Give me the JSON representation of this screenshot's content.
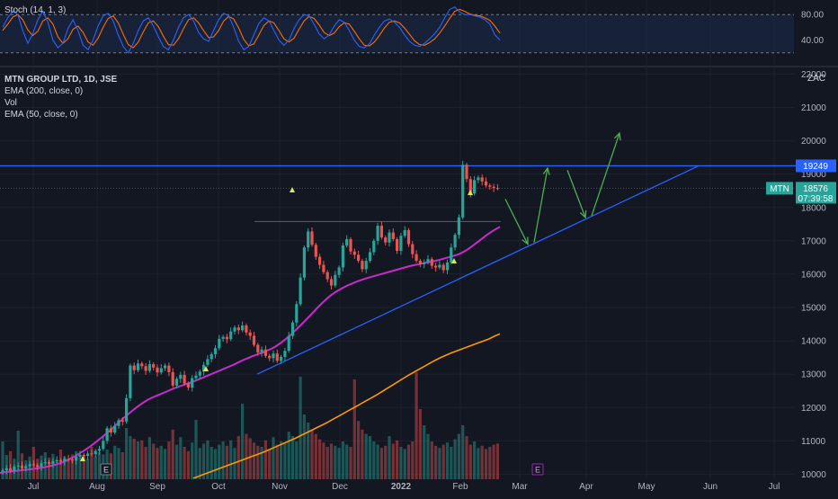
{
  "chart_data": [
    {
      "type": "line",
      "pane": "stochastic",
      "title": "Stoch (14, 1, 3)",
      "ylim": [
        0,
        100
      ],
      "y_ticks": [
        "80.00",
        "40.00"
      ],
      "band": [
        20,
        80
      ],
      "colors": {
        "k": "#2962ff",
        "d": "#ff6d00",
        "band_fill": "#1c2c4a"
      },
      "k_values": [
        60,
        75,
        85,
        80,
        55,
        35,
        50,
        72,
        85,
        68,
        40,
        28,
        35,
        58,
        72,
        55,
        32,
        25,
        40,
        62,
        78,
        82,
        70,
        48,
        30,
        20,
        35,
        55,
        70,
        75,
        62,
        45,
        30,
        25,
        40,
        60,
        75,
        80,
        70,
        52,
        42,
        38,
        55,
        72,
        82,
        78,
        60,
        38,
        25,
        30,
        48,
        66,
        75,
        70,
        55,
        40,
        32,
        40,
        58,
        72,
        80,
        78,
        65,
        50,
        42,
        48,
        62,
        72,
        68,
        55,
        40,
        30,
        28,
        34,
        48,
        60,
        70,
        73,
        68,
        60,
        48,
        38,
        32,
        30,
        35,
        42,
        50,
        60,
        75,
        88,
        92,
        84,
        80,
        80,
        78,
        76,
        72,
        65,
        48,
        40
      ],
      "d_values": [
        55,
        65,
        76,
        80,
        72,
        56,
        47,
        54,
        70,
        75,
        65,
        45,
        35,
        42,
        57,
        62,
        52,
        37,
        32,
        43,
        60,
        74,
        78,
        67,
        49,
        33,
        28,
        37,
        53,
        67,
        70,
        61,
        46,
        33,
        32,
        42,
        58,
        72,
        75,
        67,
        55,
        44,
        45,
        55,
        70,
        77,
        73,
        59,
        41,
        31,
        34,
        48,
        63,
        70,
        67,
        55,
        42,
        37,
        43,
        57,
        70,
        77,
        74,
        64,
        52,
        47,
        51,
        61,
        67,
        65,
        54,
        42,
        32,
        31,
        37,
        47,
        59,
        68,
        70,
        67,
        59,
        49,
        39,
        33,
        32,
        36,
        42,
        51,
        62,
        74,
        85,
        88,
        85,
        81,
        79,
        78,
        75,
        71,
        62,
        51
      ]
    },
    {
      "type": "candlestick",
      "pane": "price",
      "symbol": "MTN",
      "title": "MTN GROUP LTD, 1D, JSE",
      "currency": "ZAC",
      "ylim": [
        9850,
        22200
      ],
      "y_ticks": [
        10000,
        11000,
        12000,
        13000,
        14000,
        15000,
        16000,
        17000,
        18000,
        19000,
        20000,
        21000,
        22000
      ],
      "x_labels": [
        "Jul",
        "Aug",
        "Sep",
        "Oct",
        "Nov",
        "Dec",
        "2022",
        "Feb",
        "Mar",
        "Apr",
        "May",
        "Jun",
        "Jul"
      ],
      "horizontal_line": {
        "value": 19249,
        "label": "19249",
        "color": "#2962ff"
      },
      "last_price": {
        "value": 18576,
        "label": "18576",
        "countdown": "07:39:58",
        "color": "#26a69a"
      },
      "resistance_dotted": 17580,
      "colors": {
        "up": "#26a69a",
        "down": "#ef5350",
        "ema50": "#c72ccb",
        "ema200": "#ff9800",
        "trendline": "#2962ff",
        "arrows": "#4caf50"
      },
      "legend": [
        "EMA (200, close, 0)",
        "Vol",
        "EMA (50, close, 0)"
      ],
      "events": [
        "E",
        "E"
      ],
      "close": [
        10120,
        10180,
        10100,
        10230,
        10260,
        10180,
        10240,
        10300,
        10270,
        10220,
        10330,
        10360,
        10310,
        10390,
        10420,
        10380,
        10460,
        10440,
        10410,
        10520,
        10580,
        10550,
        10620,
        10600,
        10700,
        10760,
        11000,
        11380,
        11250,
        11450,
        11620,
        11580,
        12280,
        13260,
        13120,
        13320,
        13240,
        13100,
        13300,
        13200,
        13050,
        13180,
        13260,
        13060,
        12660,
        12860,
        12980,
        12720,
        12600,
        12880,
        12960,
        13080,
        13280,
        13450,
        13600,
        13780,
        14060,
        14120,
        14050,
        14280,
        14400,
        14320,
        14460,
        14250,
        14150,
        13880,
        13650,
        13740,
        13550,
        13480,
        13620,
        13400,
        13520,
        13700,
        14150,
        14550,
        15100,
        15900,
        16800,
        17280,
        16880,
        16520,
        16280,
        16060,
        15850,
        15660,
        15980,
        16200,
        16860,
        17050,
        16680,
        16580,
        16400,
        16150,
        16400,
        16660,
        17000,
        17450,
        17100,
        16950,
        17250,
        17050,
        16700,
        17150,
        17320,
        16900,
        16600,
        16400,
        16300,
        16350,
        16450,
        16250,
        16200,
        16280,
        16120,
        16350,
        16800,
        17180,
        17700,
        19280,
        18850,
        18420,
        18820,
        18900,
        18780,
        18660,
        18620,
        18580,
        18576
      ],
      "ema50": [
        10040,
        10060,
        10080,
        10095,
        10110,
        10125,
        10140,
        10160,
        10180,
        10200,
        10230,
        10260,
        10300,
        10350,
        10410,
        10480,
        10560,
        10650,
        10740,
        10840,
        10950,
        11060,
        11180,
        11300,
        11430,
        11560,
        11690,
        11810,
        11930,
        12040,
        12140,
        12230,
        12300,
        12360,
        12420,
        12480,
        12540,
        12600,
        12650,
        12700,
        12750,
        12800,
        12860,
        12920,
        12980,
        13040,
        13100,
        13160,
        13220,
        13280,
        13350,
        13420,
        13480,
        13540,
        13590,
        13640,
        13700,
        13760,
        13840,
        13940,
        14050,
        14170,
        14310,
        14450,
        14590,
        14740,
        14890,
        15040,
        15180,
        15310,
        15420,
        15510,
        15590,
        15660,
        15720,
        15780,
        15830,
        15880,
        15920,
        15960,
        16000,
        16040,
        16080,
        16120,
        16160,
        16200,
        16240,
        16270,
        16300,
        16330,
        16360,
        16390,
        16420,
        16460,
        16500,
        16540,
        16580,
        16640,
        16720,
        16820,
        16930,
        17040,
        17150,
        17250,
        17340,
        17420
      ],
      "ema200": [
        9880,
        9940,
        10000,
        10060,
        10120,
        10180,
        10240,
        10300,
        10360,
        10420,
        10480,
        10540,
        10600,
        10660,
        10730,
        10800,
        10870,
        10940,
        11010,
        11080,
        11160,
        11240,
        11320,
        11400,
        11480,
        11560,
        11650,
        11740,
        11830,
        11920,
        12010,
        12100,
        12190,
        12280,
        12370,
        12470,
        12570,
        12670,
        12770,
        12870,
        12970,
        13060,
        13150,
        13240,
        13330,
        13420,
        13500,
        13570,
        13640,
        13700,
        13760,
        13820,
        13880,
        13940,
        14000,
        14060,
        14140,
        14210
      ],
      "volume": [
        70,
        45,
        52,
        38,
        90,
        48,
        35,
        42,
        60,
        38,
        44,
        50,
        40,
        47,
        36,
        55,
        42,
        38,
        46,
        52,
        40,
        44,
        38,
        60,
        42,
        50,
        46,
        55,
        48,
        62,
        58,
        50,
        95,
        80,
        75,
        70,
        72,
        60,
        78,
        66,
        58,
        62,
        56,
        70,
        92,
        64,
        78,
        60,
        52,
        68,
        110,
        58,
        66,
        72,
        60,
        56,
        64,
        70,
        62,
        72,
        58,
        80,
        140,
        84,
        76,
        68,
        62,
        60,
        72,
        55,
        78,
        64,
        70,
        66,
        88,
        80,
        70,
        190,
        120,
        105,
        90,
        84,
        74,
        68,
        60,
        66,
        62,
        58,
        70,
        64,
        60,
        185,
        108,
        92,
        84,
        80,
        70,
        64,
        58,
        62,
        80,
        66,
        72,
        60,
        56,
        64,
        70,
        198,
        130,
        100,
        84,
        70,
        62,
        58,
        64,
        68,
        60,
        74,
        84,
        100,
        80,
        64,
        70,
        58,
        62,
        56,
        60,
        64,
        66
      ]
    }
  ]
}
